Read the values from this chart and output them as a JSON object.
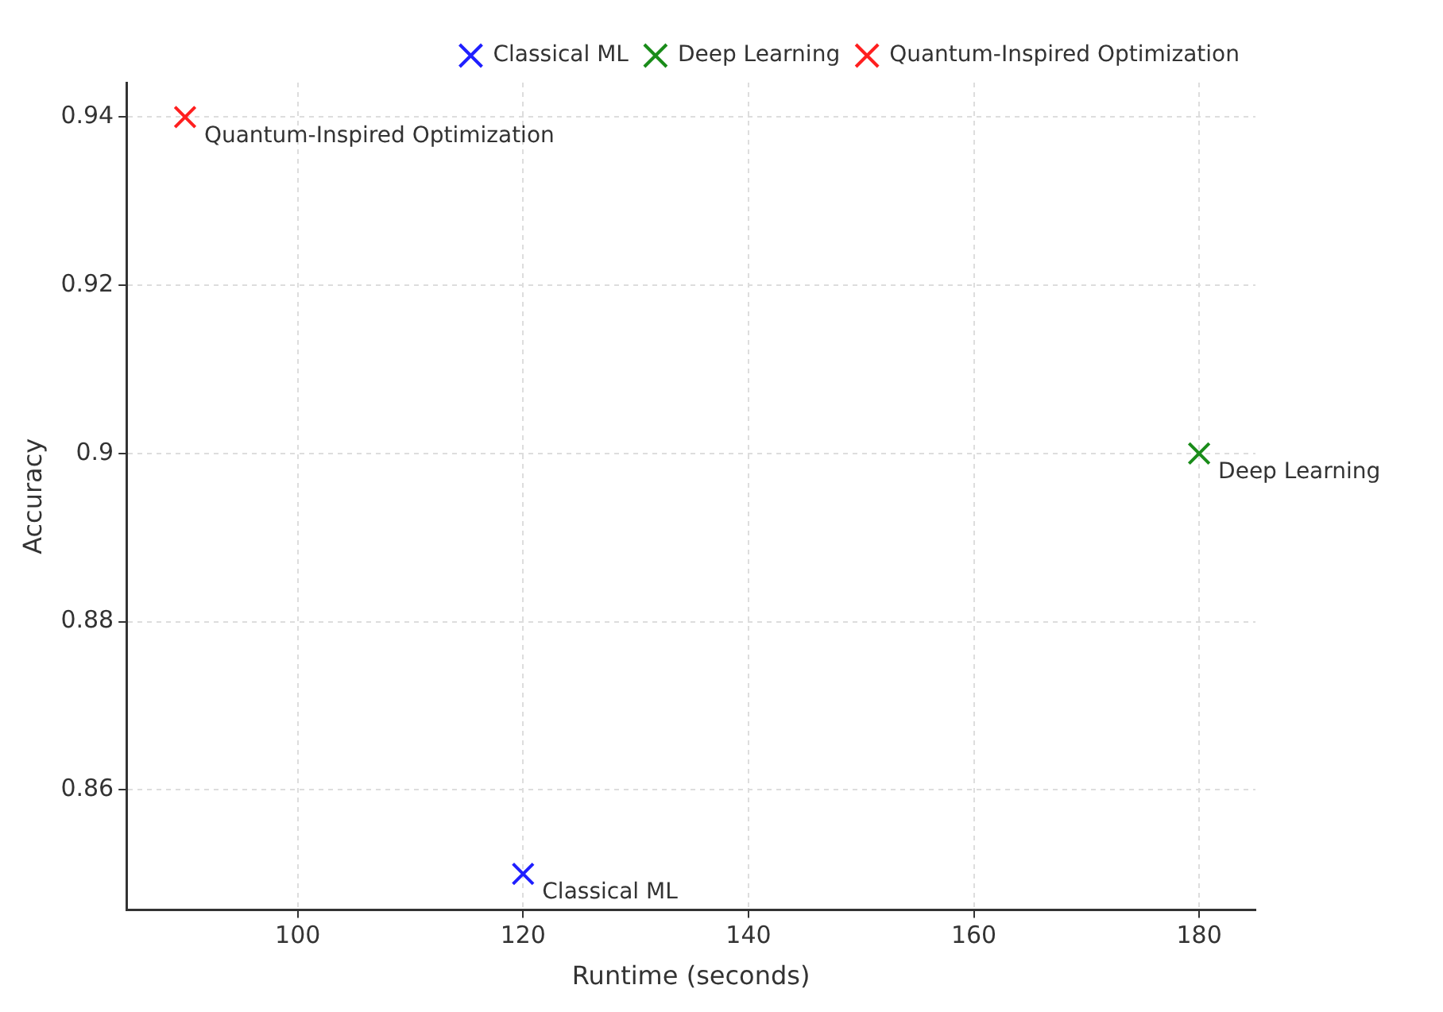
{
  "chart_data": {
    "type": "scatter",
    "xlabel": "Runtime (seconds)",
    "ylabel": "Accuracy",
    "series": [
      {
        "name": "Classical ML",
        "color": "#1f1fff",
        "x": [
          120
        ],
        "values": [
          0.85
        ]
      },
      {
        "name": "Deep Learning",
        "color": "#1a8c1a",
        "x": [
          180
        ],
        "values": [
          0.9
        ]
      },
      {
        "name": "Quantum-Inspired Optimization",
        "color": "#ff1f1f",
        "x": [
          90
        ],
        "values": [
          0.94
        ]
      }
    ],
    "annotations": [
      {
        "text": "Classical ML",
        "x": 120,
        "y": 0.85
      },
      {
        "text": "Deep Learning",
        "x": 180,
        "y": 0.9
      },
      {
        "text": "Quantum-Inspired Optimization",
        "x": 90,
        "y": 0.94
      }
    ],
    "xlim": [
      84.8,
      185
    ],
    "ylim": [
      0.8457,
      0.9441
    ],
    "xticks": [
      100,
      120,
      140,
      160,
      180
    ],
    "yticks": [
      0.86,
      0.88,
      0.9,
      0.92,
      0.94
    ],
    "grid": true,
    "legend": "top right",
    "marker": "cross"
  }
}
